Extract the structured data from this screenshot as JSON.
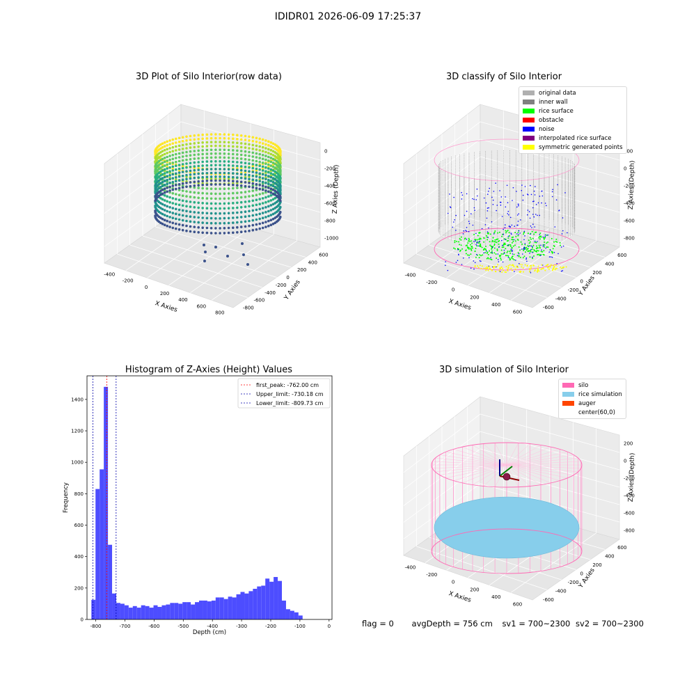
{
  "suptitle": "IDIDR01 2026-06-09 17:25:37",
  "status": {
    "flag": "flag = 0",
    "avg_depth": "avgDepth = 756 cm",
    "sv1": "sv1 = 700~2300",
    "sv2": "sv2 = 700~2300"
  },
  "chart_data": [
    {
      "type": "scatter",
      "title": "3D Plot of Silo Interior(row data)",
      "xlabel": "X Axies",
      "ylabel": "Y Axies",
      "zlabel": "Z Axies (Depth)",
      "x_ticks": [
        "-400",
        "-200",
        "0",
        "200",
        "400",
        "600",
        "800"
      ],
      "y_ticks": [
        "-800",
        "-600",
        "-400",
        "-200",
        "0",
        "200",
        "400",
        "600"
      ],
      "z_ticks": [
        "0",
        "-200",
        "-400",
        "-600",
        "-800",
        "-1000"
      ],
      "colormap": "viridis"
    },
    {
      "type": "scatter",
      "title": "3D classify of Silo Interior",
      "xlabel": "X Axies",
      "ylabel": "Y Axies",
      "zlabel": "Z Axies (Depth)",
      "x_ticks": [
        "-400",
        "-200",
        "0",
        "200",
        "400",
        "600"
      ],
      "y_ticks": [
        "-600",
        "-400",
        "-200",
        "0",
        "200",
        "400",
        "600"
      ],
      "z_ticks": [
        "200",
        "0",
        "-200",
        "-400",
        "-600",
        "-800"
      ],
      "legend": [
        {
          "label": "original data",
          "color": "#b0b0b0"
        },
        {
          "label": "inner wall",
          "color": "#808080"
        },
        {
          "label": "rice surface",
          "color": "#00ff00"
        },
        {
          "label": "obstacle",
          "color": "#ff0000"
        },
        {
          "label": "noise",
          "color": "#0000ff"
        },
        {
          "label": "interpolated rice surface",
          "color": "#800080"
        },
        {
          "label": "symmetric generated points",
          "color": "#ffff00"
        }
      ]
    },
    {
      "type": "bar",
      "title": "Histogram of Z-Axies (Height) Values",
      "xlabel": "Depth (cm)",
      "ylabel": "Frequency",
      "xlim": [
        -830,
        10
      ],
      "ylim": [
        0,
        1550
      ],
      "x_ticks": [
        -800,
        -700,
        -600,
        -500,
        -400,
        -300,
        -200,
        -100,
        0
      ],
      "y_ticks": [
        0,
        200,
        400,
        600,
        800,
        1000,
        1200,
        1400
      ],
      "bar_color": "#4d4dff",
      "bin_edges_start": -815,
      "bin_width": 14.2,
      "values": [
        125,
        830,
        955,
        1480,
        475,
        165,
        105,
        100,
        90,
        75,
        85,
        75,
        90,
        85,
        75,
        90,
        80,
        90,
        95,
        105,
        105,
        100,
        110,
        110,
        95,
        110,
        120,
        120,
        115,
        120,
        140,
        140,
        130,
        145,
        140,
        160,
        175,
        165,
        180,
        195,
        210,
        215,
        260,
        240,
        270,
        245,
        120,
        65,
        55,
        45,
        25
      ],
      "vlines": [
        {
          "x": -762.0,
          "color": "#ff0000",
          "label": "first_peak: -762.00 cm"
        },
        {
          "x": -730.18,
          "color": "#0000aa",
          "label": "Upper_limit: -730.18 cm"
        },
        {
          "x": -809.73,
          "color": "#0000aa",
          "label": "Lower_limit: -809.73 cm"
        }
      ],
      "legend_position": "top-right"
    },
    {
      "type": "scatter",
      "title": "3D simulation of Silo Interior",
      "xlabel": "X Axies",
      "ylabel": "Y Axies",
      "zlabel": "Z Axies (Depth)",
      "x_ticks": [
        "-400",
        "-200",
        "0",
        "200",
        "400",
        "600"
      ],
      "y_ticks": [
        "-600",
        "-400",
        "-200",
        "0",
        "200",
        "400",
        "600"
      ],
      "z_ticks": [
        "200",
        "0",
        "-200",
        "-400",
        "-600",
        "-800"
      ],
      "legend": [
        {
          "label": "silo",
          "color": "#ff69b4"
        },
        {
          "label": "rice simulation",
          "color": "#87ceeb"
        },
        {
          "label": "auger",
          "color": "#ff4500"
        },
        {
          "label": "center(60,0)",
          "color": ""
        }
      ]
    }
  ]
}
